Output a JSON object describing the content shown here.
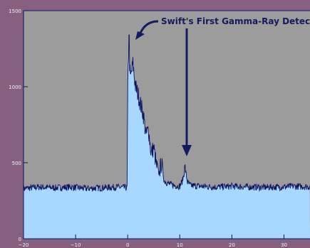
{
  "chart_data": {
    "type": "area",
    "title": "",
    "xlabel": "",
    "ylabel": "",
    "xlim": [
      -20,
      35
    ],
    "ylim": [
      0,
      1500
    ],
    "grid": false,
    "x_ticks": [
      -20,
      -10,
      0,
      10,
      20,
      30
    ],
    "x_tick_labels": [
      "−20",
      "−10",
      "0",
      "10",
      "20",
      "30"
    ],
    "y_ticks": [
      0,
      500,
      1000,
      1500
    ],
    "y_tick_labels": [
      "0",
      "500",
      "1000",
      "1500"
    ],
    "series": [
      {
        "x": [
          -20,
          -17,
          -14,
          -11,
          -8,
          -5,
          -2,
          -0.1,
          0.0,
          0.2,
          0.5,
          1.0,
          1.5,
          2.0,
          2.5,
          3.0,
          3.5,
          4.0,
          4.5,
          5.0,
          5.5,
          6.0,
          6.5,
          7.0,
          8.0,
          9.0,
          10.0,
          10.5,
          11.0,
          11.5,
          12.0,
          14.0,
          17.0,
          20.0,
          23.0,
          26.0,
          29.0,
          32.0,
          35.0
        ],
        "values": [
          330,
          340,
          335,
          340,
          330,
          335,
          340,
          335,
          950,
          1280,
          1050,
          1150,
          1000,
          950,
          880,
          820,
          680,
          720,
          560,
          600,
          480,
          430,
          500,
          380,
          360,
          350,
          345,
          380,
          460,
          370,
          350,
          345,
          340,
          345,
          340,
          338,
          340,
          345,
          342
        ]
      }
    ],
    "peak": {
      "x": 0.3,
      "y": 1340
    },
    "annotations": [
      {
        "text": "Swift's First Gamma-Ray Detections",
        "targets": [
          {
            "x": 1.5,
            "y": 1300
          },
          {
            "x": 11.5,
            "y": 520
          }
        ]
      }
    ],
    "colors": {
      "fill": "#a8d8ff",
      "line": "#0c1460",
      "plot_bg": "#9c9c9c",
      "annotation": "#131a5e",
      "tick_label": "#eef4ff"
    }
  }
}
